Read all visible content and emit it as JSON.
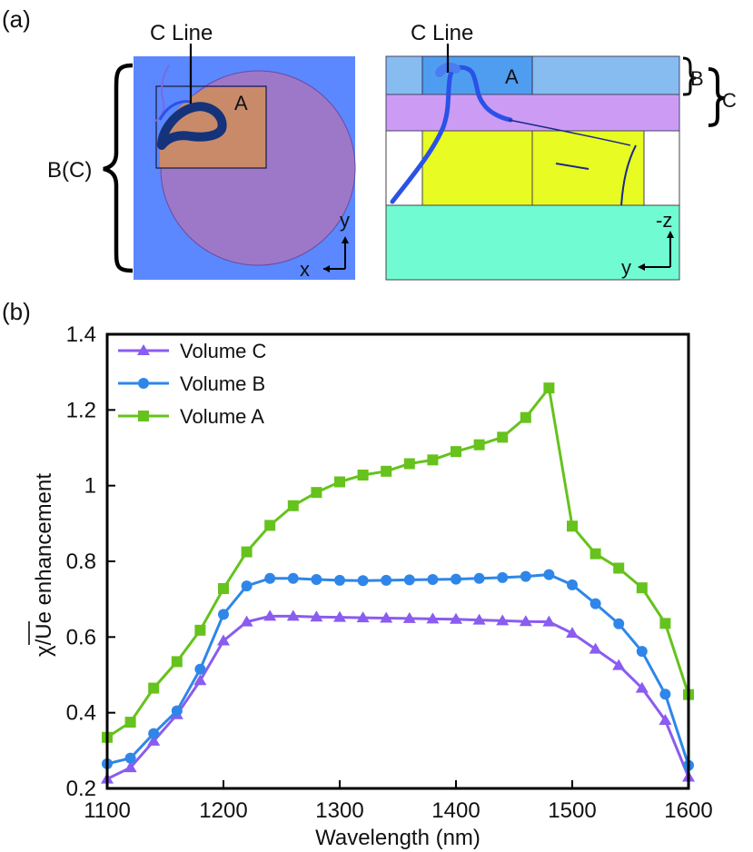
{
  "panel_a": {
    "label": "(a)",
    "left": {
      "brace_label": "B(C)",
      "callout": "C Line",
      "region_label": "A",
      "axis_x": "x",
      "axis_y": "y"
    },
    "right": {
      "callout": "C Line",
      "region_label": "A",
      "brace_b": "B",
      "brace_c": "C",
      "axis_h": "y",
      "axis_v": "-z"
    },
    "colors": {
      "substrate_blue": "#5b87ff",
      "disk_purple": "#9e78c8",
      "region_orange": "#c98a6a",
      "layer_lightblue": "#86bcf0",
      "layer_violet": "#cc9cf5",
      "layer_yellow": "#e8fb23",
      "layer_teal": "#70fbd3",
      "line_dark": "#14337a",
      "line_blue": "#2a52e8"
    }
  },
  "panel_b": {
    "label": "(b)"
  },
  "chart_data": {
    "type": "line",
    "title": "",
    "xlabel": "Wavelength (nm)",
    "ylabel": "χ/Ue enhancement",
    "xlim": [
      1100,
      1600
    ],
    "ylim": [
      0.2,
      1.4
    ],
    "xticks": [
      1100,
      1200,
      1300,
      1400,
      1500,
      1600
    ],
    "yticks": [
      0.2,
      0.4,
      0.6,
      0.8,
      1,
      1.2,
      1.4
    ],
    "ytick_labels": [
      "0.2",
      "0.4",
      "0.6",
      "0.8",
      "1",
      "1.2",
      "1.4"
    ],
    "legend_position": "top-left",
    "x": [
      1100,
      1120,
      1140,
      1160,
      1180,
      1200,
      1220,
      1240,
      1260,
      1280,
      1300,
      1320,
      1340,
      1360,
      1380,
      1400,
      1420,
      1440,
      1460,
      1480,
      1500,
      1520,
      1540,
      1560,
      1580,
      1600
    ],
    "series": [
      {
        "name": "Volume C",
        "marker": "triangle",
        "color": "#8a5cf0",
        "values": [
          0.225,
          0.255,
          0.325,
          0.395,
          0.485,
          0.59,
          0.64,
          0.655,
          0.655,
          0.653,
          0.652,
          0.651,
          0.65,
          0.649,
          0.648,
          0.647,
          0.645,
          0.643,
          0.641,
          0.64,
          0.61,
          0.568,
          0.525,
          0.465,
          0.38,
          0.23
        ]
      },
      {
        "name": "Volume B",
        "marker": "circle",
        "color": "#2f86e8",
        "values": [
          0.265,
          0.28,
          0.345,
          0.405,
          0.515,
          0.66,
          0.735,
          0.755,
          0.755,
          0.752,
          0.75,
          0.749,
          0.75,
          0.751,
          0.752,
          0.753,
          0.755,
          0.757,
          0.76,
          0.765,
          0.738,
          0.688,
          0.635,
          0.562,
          0.449,
          0.261
        ]
      },
      {
        "name": "Volume A",
        "marker": "square",
        "color": "#66c21c",
        "values": [
          0.335,
          0.375,
          0.465,
          0.535,
          0.618,
          0.728,
          0.825,
          0.895,
          0.947,
          0.982,
          1.01,
          1.028,
          1.038,
          1.058,
          1.068,
          1.09,
          1.108,
          1.128,
          1.18,
          1.258,
          0.893,
          0.82,
          0.782,
          0.73,
          0.636,
          0.448
        ]
      }
    ]
  }
}
